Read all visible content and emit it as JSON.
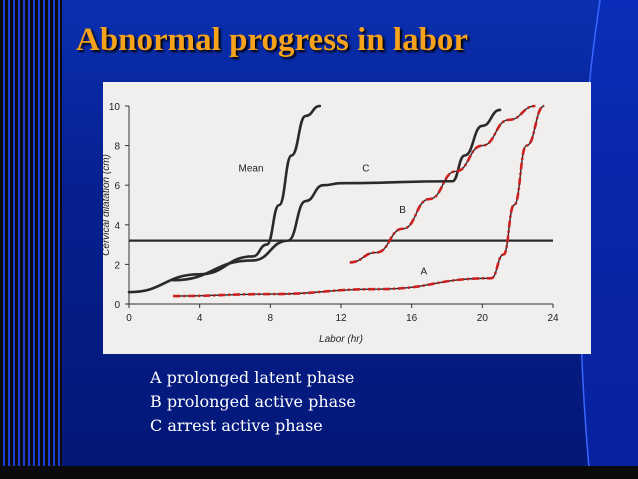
{
  "slide": {
    "title": "Abnormal progress in labor",
    "notes": [
      "A prolonged latent phase",
      "B prolonged active phase",
      "C arrest active phase"
    ]
  },
  "colors": {
    "background": "#061c8a",
    "title": "#f6a21a",
    "chart_paper": "#f0efed",
    "curve_dark": "#2a2a2a",
    "curve_red_dash": "#cc2020"
  },
  "chart_data": {
    "type": "line",
    "xlabel": "Labor (hr)",
    "ylabel": "Cervical dilatation (cm)",
    "xlim": [
      0,
      24
    ],
    "ylim": [
      0,
      10
    ],
    "x_ticks": [
      "0",
      "4",
      "8",
      "12",
      "16",
      "20",
      "24"
    ],
    "y_ticks": [
      "0",
      "2",
      "4",
      "6",
      "8",
      "10"
    ],
    "grid": false,
    "reference_line": {
      "y": 3.2
    },
    "series": [
      {
        "name": "Mean",
        "style": "solid",
        "points": [
          [
            0,
            0.6
          ],
          [
            4,
            1.5
          ],
          [
            7,
            2.4
          ],
          [
            7.8,
            3
          ],
          [
            8.5,
            5
          ],
          [
            9.2,
            7.5
          ],
          [
            10,
            9.5
          ],
          [
            10.8,
            10
          ]
        ]
      },
      {
        "name": "C",
        "style": "solid",
        "points": [
          [
            2.5,
            1.2
          ],
          [
            7,
            2.2
          ],
          [
            9,
            3.2
          ],
          [
            10,
            5.2
          ],
          [
            11,
            6
          ],
          [
            12,
            6.1
          ],
          [
            18.3,
            6.2
          ],
          [
            19,
            7.5
          ],
          [
            20,
            9
          ],
          [
            21,
            9.8
          ]
        ]
      },
      {
        "name": "B",
        "style": "dash-dot",
        "points": [
          [
            12.5,
            2.1
          ],
          [
            14,
            2.6
          ],
          [
            15.5,
            3.8
          ],
          [
            17,
            5.3
          ],
          [
            18.5,
            6.7
          ],
          [
            20,
            8
          ],
          [
            21.5,
            9.3
          ],
          [
            23,
            10
          ]
        ]
      },
      {
        "name": "A",
        "style": "dash-dot",
        "points": [
          [
            2.5,
            0.4
          ],
          [
            8,
            0.5
          ],
          [
            14,
            0.75
          ],
          [
            20.5,
            1.3
          ],
          [
            21.2,
            2.5
          ],
          [
            21.8,
            5
          ],
          [
            22.5,
            8
          ],
          [
            23.5,
            10
          ]
        ]
      }
    ]
  }
}
